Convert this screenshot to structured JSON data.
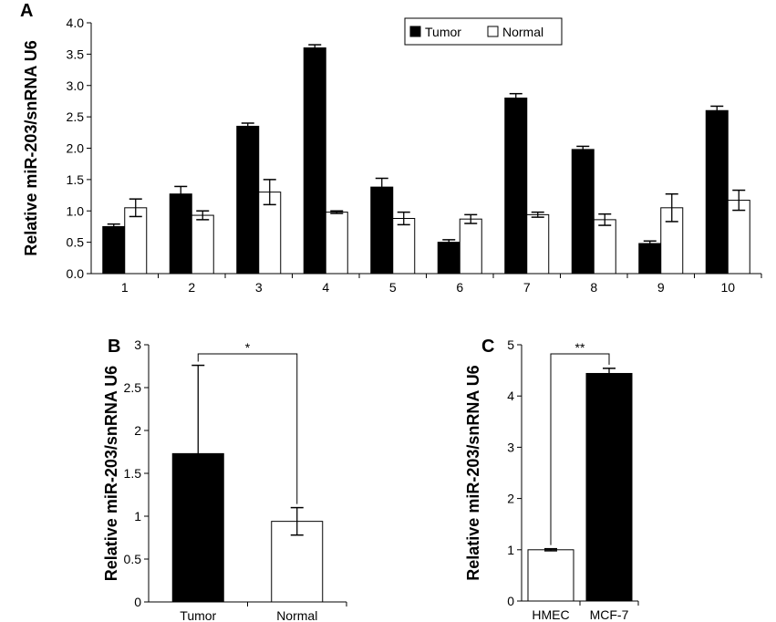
{
  "chart_data": [
    {
      "panel": "A",
      "type": "bar",
      "ylabel": "Relative miR-203/snRNA U6",
      "ylim": [
        0,
        4.0
      ],
      "yticks": [
        "0.0",
        "0.5",
        "1.0",
        "1.5",
        "2.0",
        "2.5",
        "3.0",
        "3.5",
        "4.0"
      ],
      "categories": [
        "1",
        "2",
        "3",
        "4",
        "5",
        "6",
        "7",
        "8",
        "9",
        "10"
      ],
      "legend": [
        "Tumor",
        "Normal"
      ],
      "legend_position": "top-right",
      "series": [
        {
          "name": "Tumor",
          "color": "#000000",
          "values": [
            0.75,
            1.27,
            2.35,
            3.6,
            1.38,
            0.5,
            2.8,
            1.98,
            0.48,
            2.6
          ],
          "errors": [
            0.04,
            0.12,
            0.05,
            0.05,
            0.14,
            0.04,
            0.07,
            0.05,
            0.04,
            0.07
          ]
        },
        {
          "name": "Normal",
          "color": "#ffffff",
          "values": [
            1.05,
            0.93,
            1.3,
            0.98,
            0.88,
            0.87,
            0.94,
            0.86,
            1.05,
            1.17
          ],
          "errors": [
            0.14,
            0.07,
            0.2,
            0.02,
            0.1,
            0.07,
            0.04,
            0.09,
            0.22,
            0.16
          ]
        }
      ]
    },
    {
      "panel": "B",
      "type": "bar",
      "ylabel": "Relative miR-203/snRNA U6",
      "ylim": [
        0,
        3
      ],
      "yticks": [
        "0",
        "0.5",
        "1",
        "1.5",
        "2",
        "2.5",
        "3"
      ],
      "categories": [
        "Tumor",
        "Normal"
      ],
      "colors": [
        "#000000",
        "#ffffff"
      ],
      "values": [
        1.73,
        0.94
      ],
      "errors": [
        1.03,
        0.16
      ],
      "significance": "*"
    },
    {
      "panel": "C",
      "type": "bar",
      "ylabel": "Relative miR-203/snRNA U6",
      "ylim": [
        0,
        5
      ],
      "yticks": [
        "0",
        "1",
        "2",
        "3",
        "4",
        "5"
      ],
      "categories": [
        "HMEC",
        "MCF-7"
      ],
      "colors": [
        "#ffffff",
        "#000000"
      ],
      "values": [
        1.0,
        4.44
      ],
      "errors": [
        0.02,
        0.1
      ],
      "significance": "**"
    }
  ]
}
